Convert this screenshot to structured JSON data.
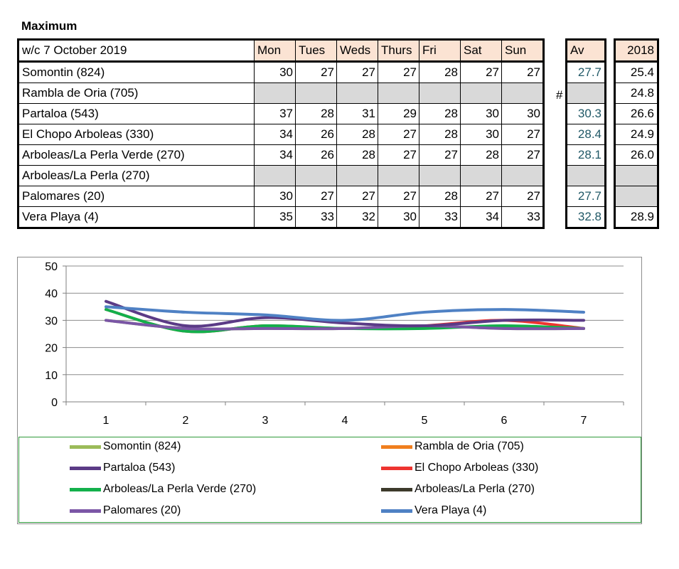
{
  "title": "Maximum",
  "table": {
    "week_label": "w/c 7 October 2019",
    "days": [
      "Mon",
      "Tues",
      "Weds",
      "Thurs",
      "Fri",
      "Sat",
      "Sun"
    ],
    "av_label": "Av",
    "year_label": "2018",
    "hash_mark": "#",
    "rows": [
      {
        "name": "Somontin (824)",
        "values": [
          "30",
          "27",
          "27",
          "27",
          "28",
          "27",
          "27"
        ],
        "av": "27.7",
        "prev": "25.4"
      },
      {
        "name": "Rambla de Oria (705)",
        "values": [
          null,
          null,
          null,
          null,
          null,
          null,
          null
        ],
        "av": null,
        "prev": "24.8"
      },
      {
        "name": "Partaloa (543)",
        "values": [
          "37",
          "28",
          "31",
          "29",
          "28",
          "30",
          "30"
        ],
        "av": "30.3",
        "prev": "26.6"
      },
      {
        "name": "El Chopo  Arboleas (330)",
        "values": [
          "34",
          "26",
          "28",
          "27",
          "28",
          "30",
          "27"
        ],
        "av": "28.4",
        "prev": "24.9"
      },
      {
        "name": "Arboleas/La Perla Verde (270)",
        "values": [
          "34",
          "26",
          "28",
          "27",
          "27",
          "28",
          "27"
        ],
        "av": "28.1",
        "prev": "26.0"
      },
      {
        "name": "Arboleas/La Perla (270)",
        "values": [
          null,
          null,
          null,
          null,
          null,
          null,
          null
        ],
        "av": null,
        "prev": null
      },
      {
        "name": "Palomares (20)",
        "values": [
          "30",
          "27",
          "27",
          "27",
          "28",
          "27",
          "27"
        ],
        "av": "27.7",
        "prev": null
      },
      {
        "name": "Vera Playa (4)",
        "values": [
          "35",
          "33",
          "32",
          "30",
          "33",
          "34",
          "33"
        ],
        "av": "32.8",
        "prev": "28.9"
      }
    ]
  },
  "chart_data": {
    "type": "line",
    "x": [
      1,
      2,
      3,
      4,
      5,
      6,
      7
    ],
    "ylim": [
      0,
      50
    ],
    "yticks": [
      0,
      10,
      20,
      30,
      40,
      50
    ],
    "grid": true,
    "legend": "bottom",
    "series": [
      {
        "name": "Somontin (824)",
        "color": "#9bbb59",
        "values": [
          30,
          27,
          27,
          27,
          28,
          27,
          27
        ]
      },
      {
        "name": "Rambla de Oria (705)",
        "color": "#f07f1e",
        "values": [
          null,
          null,
          null,
          null,
          null,
          null,
          null
        ]
      },
      {
        "name": "Partaloa (543)",
        "color": "#5b3b86",
        "values": [
          37,
          28,
          31,
          29,
          28,
          30,
          30
        ]
      },
      {
        "name": "El Chopo  Arboleas (330)",
        "color": "#ee3430",
        "values": [
          34,
          26,
          28,
          27,
          28,
          30,
          27
        ]
      },
      {
        "name": "Arboleas/La Perla Verde (270)",
        "color": "#13b04b",
        "values": [
          34,
          26,
          28,
          27,
          27,
          28,
          27
        ]
      },
      {
        "name": "Arboleas/La Perla (270)",
        "color": "#3d3a2b",
        "values": [
          null,
          null,
          null,
          null,
          null,
          null,
          null
        ]
      },
      {
        "name": "Palomares (20)",
        "color": "#7b56a6",
        "values": [
          30,
          27,
          27,
          27,
          28,
          27,
          27
        ]
      },
      {
        "name": "Vera Playa (4)",
        "color": "#4f81c4",
        "values": [
          35,
          33,
          32,
          30,
          33,
          34,
          33
        ]
      }
    ]
  }
}
